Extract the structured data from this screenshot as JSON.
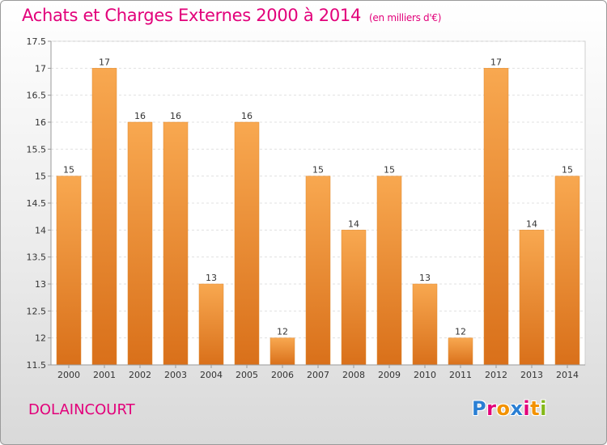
{
  "chart_data": {
    "type": "bar",
    "title": "Achats et Charges Externes 2000 à 2014",
    "subtitle": "(en milliers d'€)",
    "categories": [
      "2000",
      "2001",
      "2002",
      "2003",
      "2004",
      "2005",
      "2006",
      "2007",
      "2008",
      "2009",
      "2010",
      "2011",
      "2012",
      "2013",
      "2014"
    ],
    "values": [
      15,
      17,
      16,
      16,
      13,
      16,
      12,
      15,
      14,
      15,
      13,
      12,
      17,
      14,
      15
    ],
    "ylim": [
      11.5,
      17.5
    ],
    "yticks": [
      "11.5",
      "12",
      "12.5",
      "13",
      "13.5",
      "14",
      "14.5",
      "15",
      "15.5",
      "16",
      "16.5",
      "17",
      "17.5"
    ],
    "grid": true,
    "bar_color": "#f2933a"
  },
  "footer": {
    "city": "DOLAINCOURT"
  },
  "logo": {
    "letters": [
      "P",
      "r",
      "o",
      "x",
      "i",
      "t",
      "i"
    ],
    "colors": [
      "#2a7fd4",
      "#e2007a",
      "#f39200",
      "#2a7fd4",
      "#e2007a",
      "#f39200",
      "#84b819"
    ]
  }
}
